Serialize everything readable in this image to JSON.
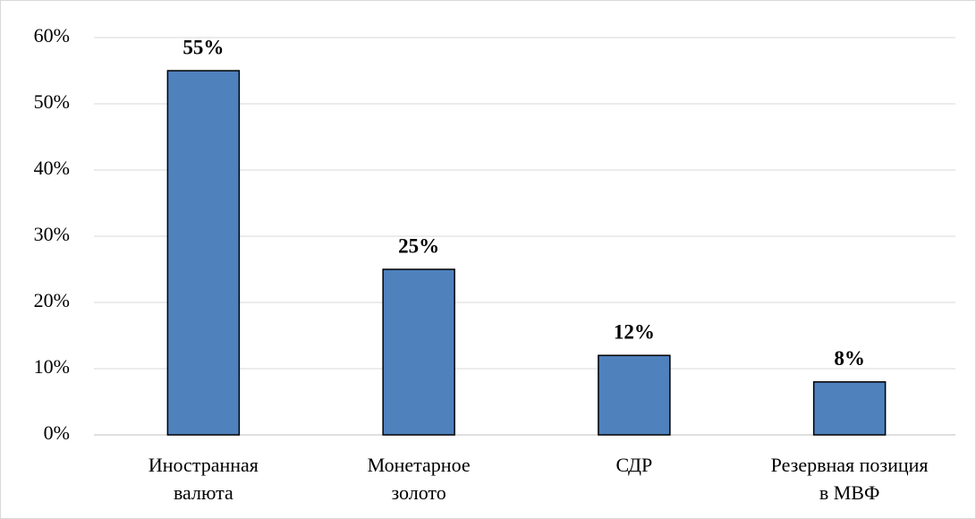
{
  "chart_data": {
    "type": "bar",
    "categories": [
      [
        "Иностранная",
        "валюта"
      ],
      [
        "Монетарное",
        "золото"
      ],
      [
        "СДР"
      ],
      [
        "Резервная позиция",
        "в МВФ"
      ]
    ],
    "values": [
      55,
      25,
      12,
      8
    ],
    "value_labels": [
      "55%",
      "25%",
      "12%",
      "8%"
    ],
    "color": "#4f81bd",
    "ylim": [
      0,
      60
    ],
    "yticks": [
      {
        "value": 0,
        "label": "0%"
      },
      {
        "value": 10,
        "label": "10%"
      },
      {
        "value": 20,
        "label": "20%"
      },
      {
        "value": 30,
        "label": "30%"
      },
      {
        "value": 40,
        "label": "40%"
      },
      {
        "value": 50,
        "label": "50%"
      },
      {
        "value": 60,
        "label": "60%"
      }
    ],
    "grid": true
  }
}
